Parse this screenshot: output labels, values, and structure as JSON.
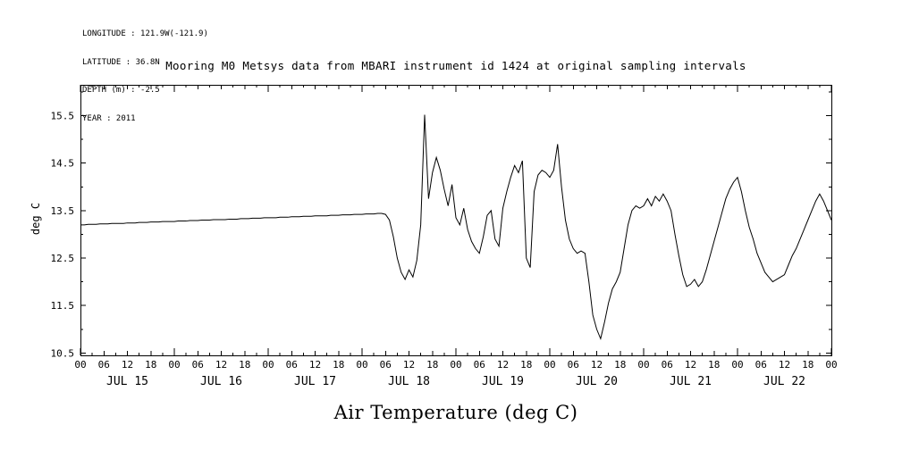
{
  "meta": {
    "longitude": "LONGITUDE : 121.9W(-121.9)",
    "latitude": "LATITUDE : 36.8N",
    "depth": "DEPTH (m) : -2.5",
    "year": "YEAR : 2011"
  },
  "title": "Mooring M0 Metsys data from MBARI instrument id 1424 at original sampling intervals",
  "chart_data": {
    "type": "line",
    "title": "Mooring M0 Metsys data from MBARI instrument id 1424 at original sampling intervals",
    "ylabel": "deg C",
    "bottom_label": "Air Temperature (deg C)",
    "line_color": "#000000",
    "x_start": "2011 JUL 15 00:00",
    "x_end": "2011 JUL 23 00:00",
    "x_step_hours": 1,
    "xlim_hours": [
      0,
      192
    ],
    "ylim": [
      10.45,
      16.15
    ],
    "y_ticks": [
      10.5,
      11.5,
      12.5,
      13.5,
      14.5,
      15.5
    ],
    "x_hour_tick_labels": [
      "00",
      "06",
      "12",
      "18"
    ],
    "x_day_labels": [
      "JUL 15",
      "JUL 16",
      "JUL 17",
      "JUL 18",
      "JUL 19",
      "JUL 20",
      "JUL 21",
      "JUL 22"
    ],
    "values": [
      13.2,
      13.2,
      13.21,
      13.21,
      13.21,
      13.22,
      13.22,
      13.22,
      13.23,
      13.23,
      13.23,
      13.23,
      13.24,
      13.24,
      13.24,
      13.25,
      13.25,
      13.25,
      13.26,
      13.26,
      13.26,
      13.27,
      13.27,
      13.27,
      13.27,
      13.28,
      13.28,
      13.28,
      13.29,
      13.29,
      13.29,
      13.3,
      13.3,
      13.3,
      13.31,
      13.31,
      13.31,
      13.31,
      13.32,
      13.32,
      13.32,
      13.33,
      13.33,
      13.33,
      13.34,
      13.34,
      13.34,
      13.35,
      13.35,
      13.35,
      13.35,
      13.36,
      13.36,
      13.36,
      13.37,
      13.37,
      13.37,
      13.38,
      13.38,
      13.38,
      13.39,
      13.39,
      13.39,
      13.39,
      13.4,
      13.4,
      13.4,
      13.41,
      13.41,
      13.41,
      13.42,
      13.42,
      13.42,
      13.43,
      13.43,
      13.43,
      13.44,
      13.44,
      13.42,
      13.3,
      12.95,
      12.5,
      12.2,
      12.05,
      12.25,
      12.1,
      12.45,
      13.2,
      15.52,
      13.75,
      14.3,
      14.62,
      14.35,
      13.95,
      13.6,
      14.05,
      13.35,
      13.2,
      13.55,
      13.1,
      12.85,
      12.7,
      12.6,
      12.95,
      13.4,
      13.5,
      12.9,
      12.75,
      13.55,
      13.9,
      14.2,
      14.45,
      14.3,
      14.55,
      12.5,
      12.3,
      13.9,
      14.25,
      14.35,
      14.3,
      14.2,
      14.35,
      14.9,
      14.0,
      13.3,
      12.9,
      12.7,
      12.6,
      12.65,
      12.6,
      12.0,
      11.3,
      11.0,
      10.8,
      11.15,
      11.55,
      11.85,
      12.0,
      12.2,
      12.7,
      13.2,
      13.5,
      13.6,
      13.55,
      13.6,
      13.75,
      13.6,
      13.8,
      13.7,
      13.85,
      13.7,
      13.5,
      13.0,
      12.55,
      12.15,
      11.9,
      11.95,
      12.05,
      11.9,
      12.0,
      12.25,
      12.55,
      12.85,
      13.15,
      13.45,
      13.75,
      13.95,
      14.1,
      14.2,
      13.9,
      13.5,
      13.15,
      12.9,
      12.6,
      12.4,
      12.2,
      12.1,
      12.0,
      12.05,
      12.1,
      12.15,
      12.35,
      12.55,
      12.7,
      12.9,
      13.1,
      13.3,
      13.5,
      13.7,
      13.85,
      13.7,
      13.5,
      13.3
    ]
  }
}
